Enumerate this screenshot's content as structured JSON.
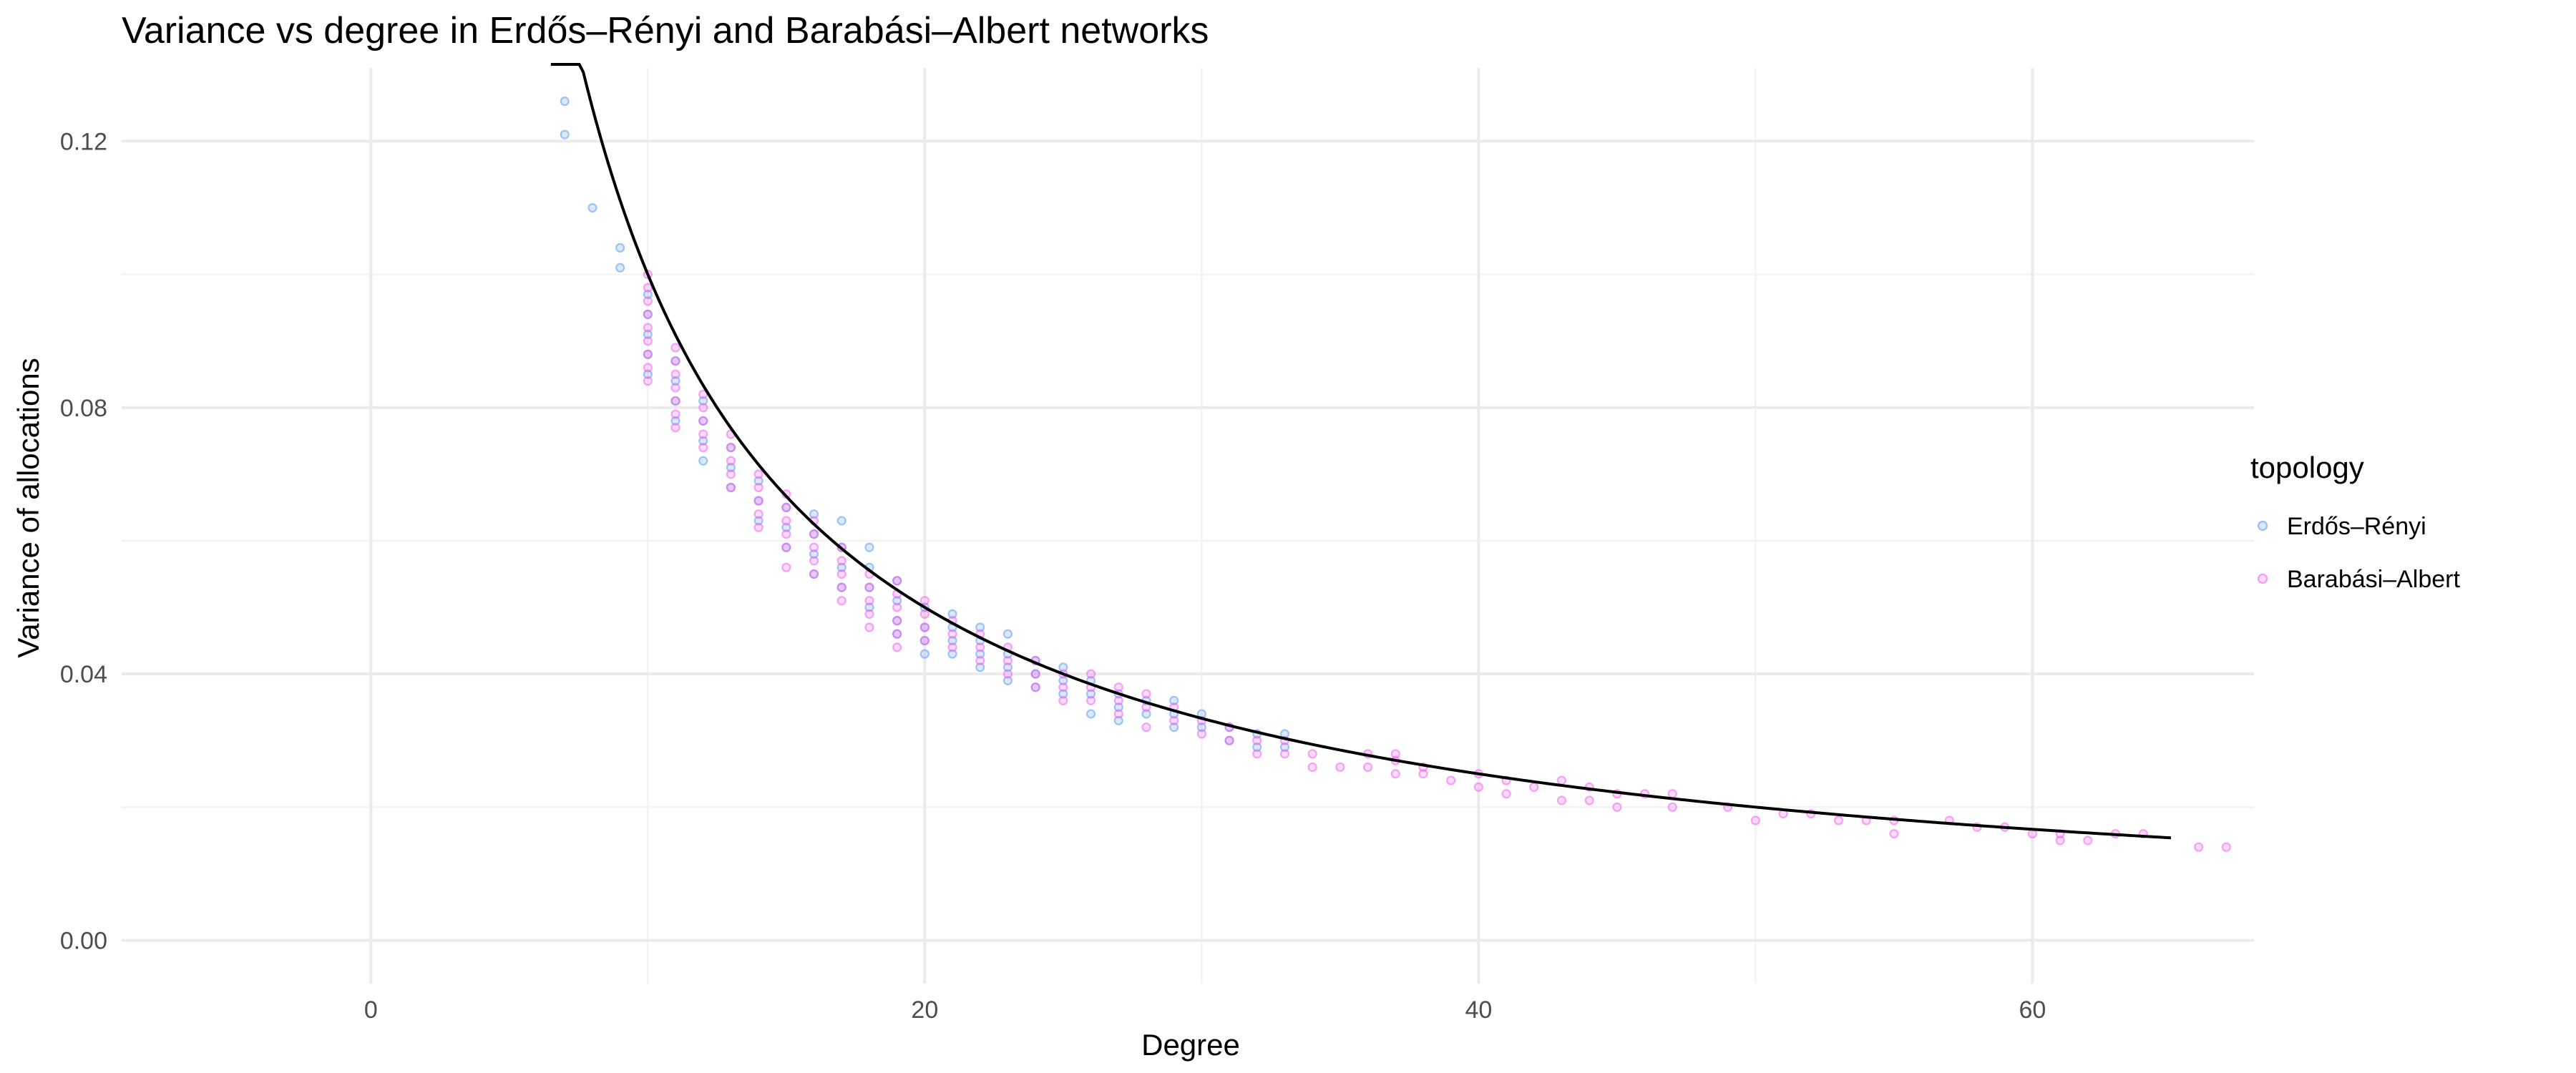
{
  "chart_data": {
    "type": "scatter",
    "title": "Variance vs degree in Erdős–Rényi and Barabási–Albert networks",
    "xlabel": "Degree",
    "ylabel": "Variance of allocations",
    "xlim": [
      -9,
      68
    ],
    "ylim": [
      -0.0065,
      0.131
    ],
    "x_ticks": [
      0,
      20,
      40,
      60
    ],
    "x_tick_labels": [
      "0",
      "20",
      "40",
      "60"
    ],
    "y_ticks": [
      0,
      0.04,
      0.08,
      0.12
    ],
    "y_tick_labels": [
      "0.00",
      "0.04",
      "0.08",
      "0.12"
    ],
    "grid": true,
    "legend": {
      "title": "topology",
      "position": "right"
    },
    "series": [
      {
        "name": "Erdős–Rényi",
        "color": "#5b9bf0",
        "points": [
          [
            7,
            0.126
          ],
          [
            7,
            0.121
          ],
          [
            8,
            0.11
          ],
          [
            9,
            0.104
          ],
          [
            9,
            0.101
          ],
          [
            10,
            0.097
          ],
          [
            10,
            0.094
          ],
          [
            10,
            0.091
          ],
          [
            10,
            0.088
          ],
          [
            10,
            0.085
          ],
          [
            11,
            0.087
          ],
          [
            11,
            0.084
          ],
          [
            11,
            0.081
          ],
          [
            11,
            0.078
          ],
          [
            12,
            0.081
          ],
          [
            12,
            0.078
          ],
          [
            12,
            0.075
          ],
          [
            12,
            0.072
          ],
          [
            13,
            0.074
          ],
          [
            13,
            0.071
          ],
          [
            13,
            0.068
          ],
          [
            14,
            0.069
          ],
          [
            14,
            0.066
          ],
          [
            14,
            0.063
          ],
          [
            15,
            0.065
          ],
          [
            15,
            0.062
          ],
          [
            15,
            0.059
          ],
          [
            16,
            0.064
          ],
          [
            16,
            0.061
          ],
          [
            16,
            0.058
          ],
          [
            16,
            0.055
          ],
          [
            17,
            0.063
          ],
          [
            17,
            0.059
          ],
          [
            17,
            0.056
          ],
          [
            17,
            0.053
          ],
          [
            18,
            0.059
          ],
          [
            18,
            0.056
          ],
          [
            18,
            0.053
          ],
          [
            18,
            0.05
          ],
          [
            19,
            0.054
          ],
          [
            19,
            0.051
          ],
          [
            19,
            0.048
          ],
          [
            19,
            0.046
          ],
          [
            20,
            0.05
          ],
          [
            20,
            0.047
          ],
          [
            20,
            0.045
          ],
          [
            20,
            0.043
          ],
          [
            21,
            0.049
          ],
          [
            21,
            0.047
          ],
          [
            21,
            0.045
          ],
          [
            21,
            0.043
          ],
          [
            22,
            0.047
          ],
          [
            22,
            0.045
          ],
          [
            22,
            0.043
          ],
          [
            22,
            0.041
          ],
          [
            23,
            0.046
          ],
          [
            23,
            0.043
          ],
          [
            23,
            0.041
          ],
          [
            23,
            0.039
          ],
          [
            24,
            0.042
          ],
          [
            24,
            0.04
          ],
          [
            24,
            0.038
          ],
          [
            25,
            0.041
          ],
          [
            25,
            0.039
          ],
          [
            25,
            0.037
          ],
          [
            26,
            0.039
          ],
          [
            26,
            0.037
          ],
          [
            26,
            0.034
          ],
          [
            27,
            0.037
          ],
          [
            27,
            0.035
          ],
          [
            27,
            0.033
          ],
          [
            28,
            0.036
          ],
          [
            28,
            0.034
          ],
          [
            29,
            0.036
          ],
          [
            29,
            0.034
          ],
          [
            29,
            0.032
          ],
          [
            30,
            0.034
          ],
          [
            30,
            0.032
          ],
          [
            31,
            0.032
          ],
          [
            31,
            0.03
          ],
          [
            32,
            0.031
          ],
          [
            32,
            0.029
          ],
          [
            33,
            0.031
          ],
          [
            33,
            0.029
          ]
        ]
      },
      {
        "name": "Barabási–Albert",
        "color": "#f25ef0",
        "points": [
          [
            10,
            0.1
          ],
          [
            10,
            0.098
          ],
          [
            10,
            0.096
          ],
          [
            10,
            0.094
          ],
          [
            10,
            0.092
          ],
          [
            10,
            0.09
          ],
          [
            10,
            0.088
          ],
          [
            10,
            0.086
          ],
          [
            10,
            0.084
          ],
          [
            11,
            0.089
          ],
          [
            11,
            0.087
          ],
          [
            11,
            0.085
          ],
          [
            11,
            0.083
          ],
          [
            11,
            0.081
          ],
          [
            11,
            0.079
          ],
          [
            11,
            0.077
          ],
          [
            12,
            0.082
          ],
          [
            12,
            0.08
          ],
          [
            12,
            0.078
          ],
          [
            12,
            0.076
          ],
          [
            12,
            0.074
          ],
          [
            13,
            0.076
          ],
          [
            13,
            0.074
          ],
          [
            13,
            0.072
          ],
          [
            13,
            0.07
          ],
          [
            13,
            0.068
          ],
          [
            14,
            0.07
          ],
          [
            14,
            0.068
          ],
          [
            14,
            0.066
          ],
          [
            14,
            0.064
          ],
          [
            14,
            0.062
          ],
          [
            15,
            0.067
          ],
          [
            15,
            0.065
          ],
          [
            15,
            0.063
          ],
          [
            15,
            0.061
          ],
          [
            15,
            0.059
          ],
          [
            15,
            0.056
          ],
          [
            16,
            0.063
          ],
          [
            16,
            0.061
          ],
          [
            16,
            0.059
          ],
          [
            16,
            0.057
          ],
          [
            16,
            0.055
          ],
          [
            17,
            0.059
          ],
          [
            17,
            0.057
          ],
          [
            17,
            0.055
          ],
          [
            17,
            0.053
          ],
          [
            17,
            0.051
          ],
          [
            18,
            0.055
          ],
          [
            18,
            0.053
          ],
          [
            18,
            0.051
          ],
          [
            18,
            0.049
          ],
          [
            18,
            0.047
          ],
          [
            19,
            0.054
          ],
          [
            19,
            0.052
          ],
          [
            19,
            0.05
          ],
          [
            19,
            0.048
          ],
          [
            19,
            0.046
          ],
          [
            19,
            0.044
          ],
          [
            20,
            0.051
          ],
          [
            20,
            0.049
          ],
          [
            20,
            0.047
          ],
          [
            20,
            0.045
          ],
          [
            21,
            0.048
          ],
          [
            21,
            0.046
          ],
          [
            21,
            0.044
          ],
          [
            22,
            0.046
          ],
          [
            22,
            0.044
          ],
          [
            22,
            0.042
          ],
          [
            23,
            0.044
          ],
          [
            23,
            0.042
          ],
          [
            23,
            0.04
          ],
          [
            24,
            0.042
          ],
          [
            24,
            0.04
          ],
          [
            24,
            0.038
          ],
          [
            25,
            0.04
          ],
          [
            25,
            0.038
          ],
          [
            25,
            0.036
          ],
          [
            26,
            0.04
          ],
          [
            26,
            0.038
          ],
          [
            26,
            0.036
          ],
          [
            27,
            0.038
          ],
          [
            27,
            0.036
          ],
          [
            27,
            0.034
          ],
          [
            28,
            0.037
          ],
          [
            28,
            0.035
          ],
          [
            28,
            0.032
          ],
          [
            29,
            0.035
          ],
          [
            29,
            0.033
          ],
          [
            30,
            0.033
          ],
          [
            30,
            0.031
          ],
          [
            31,
            0.032
          ],
          [
            31,
            0.03
          ],
          [
            32,
            0.03
          ],
          [
            32,
            0.028
          ],
          [
            33,
            0.03
          ],
          [
            33,
            0.028
          ],
          [
            34,
            0.028
          ],
          [
            34,
            0.026
          ],
          [
            35,
            0.026
          ],
          [
            36,
            0.028
          ],
          [
            36,
            0.026
          ],
          [
            37,
            0.028
          ],
          [
            37,
            0.027
          ],
          [
            37,
            0.025
          ],
          [
            38,
            0.026
          ],
          [
            38,
            0.025
          ],
          [
            39,
            0.024
          ],
          [
            40,
            0.025
          ],
          [
            40,
            0.023
          ],
          [
            41,
            0.024
          ],
          [
            41,
            0.022
          ],
          [
            42,
            0.023
          ],
          [
            43,
            0.024
          ],
          [
            43,
            0.021
          ],
          [
            44,
            0.023
          ],
          [
            44,
            0.021
          ],
          [
            45,
            0.022
          ],
          [
            45,
            0.02
          ],
          [
            46,
            0.022
          ],
          [
            47,
            0.022
          ],
          [
            47,
            0.02
          ],
          [
            49,
            0.02
          ],
          [
            50,
            0.018
          ],
          [
            51,
            0.019
          ],
          [
            52,
            0.019
          ],
          [
            53,
            0.018
          ],
          [
            54,
            0.018
          ],
          [
            55,
            0.018
          ],
          [
            55,
            0.016
          ],
          [
            57,
            0.018
          ],
          [
            58,
            0.017
          ],
          [
            59,
            0.017
          ],
          [
            60,
            0.016
          ],
          [
            61,
            0.016
          ],
          [
            61,
            0.015
          ],
          [
            62,
            0.015
          ],
          [
            63,
            0.016
          ],
          [
            64,
            0.016
          ],
          [
            66,
            0.014
          ],
          [
            67,
            0.014
          ]
        ]
      }
    ],
    "fit_curve": {
      "color": "#000000",
      "x_range": [
        6.5,
        65
      ],
      "description": "y = 1/degree"
    }
  }
}
